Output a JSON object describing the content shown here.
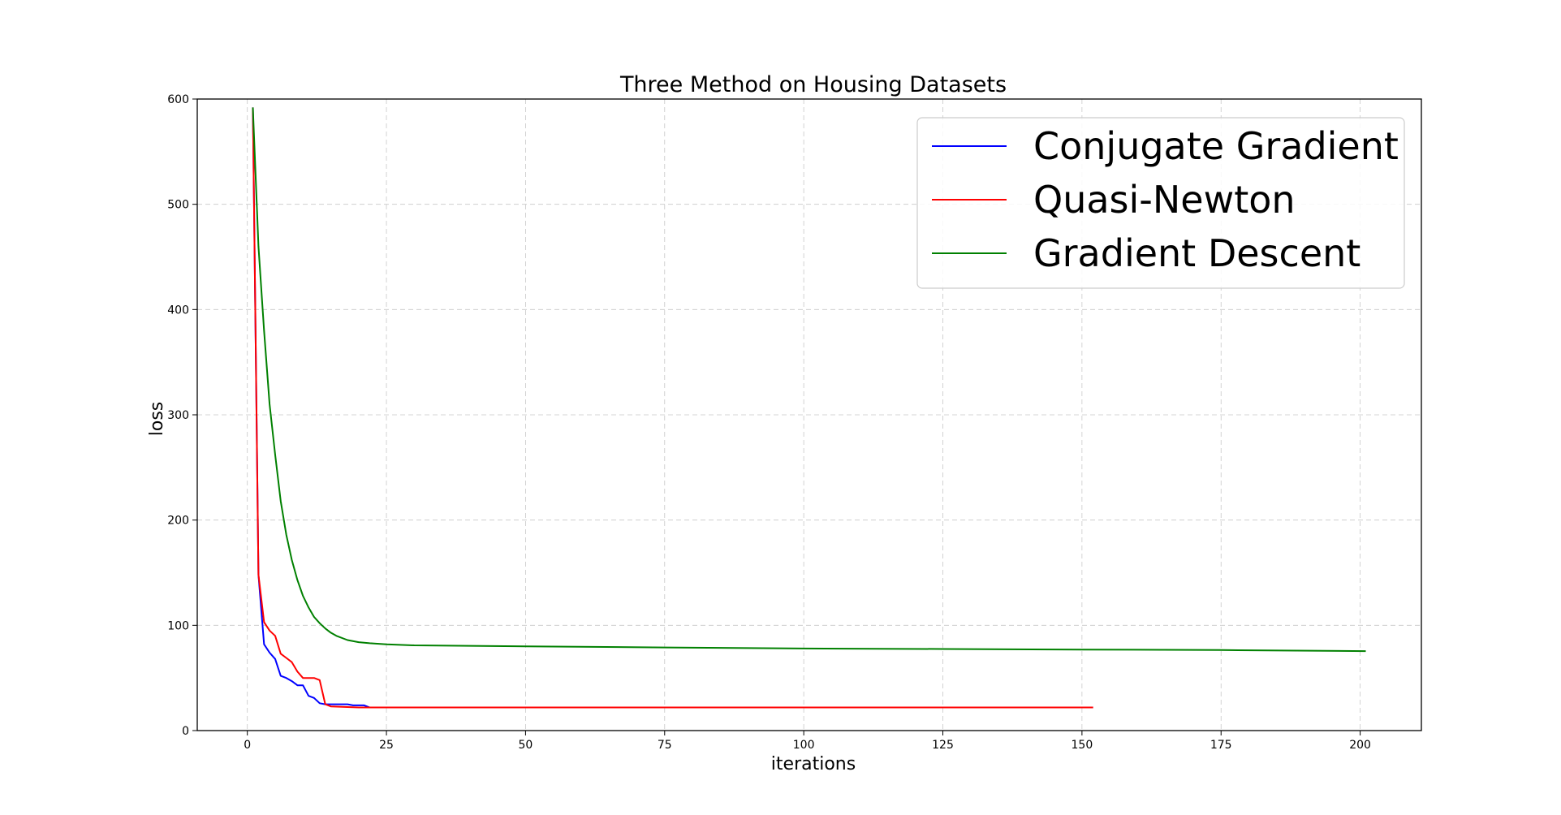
{
  "chart_data": {
    "type": "line",
    "title": "Three Method on Housing Datasets",
    "xlabel": "iterations",
    "ylabel": "loss",
    "xlim": [
      -9,
      211
    ],
    "ylim": [
      0,
      600
    ],
    "xticks": [
      0,
      25,
      50,
      75,
      100,
      125,
      150,
      175,
      200
    ],
    "yticks": [
      0,
      100,
      200,
      300,
      400,
      500,
      600
    ],
    "grid": true,
    "legend_position": "top-right",
    "series": [
      {
        "name": "Conjugate Gradient",
        "color": "#0000ff",
        "x": [
          1,
          2,
          3,
          4,
          5,
          6,
          7,
          8,
          9,
          10,
          11,
          12,
          13,
          14,
          15,
          16,
          17,
          18,
          19,
          20,
          21,
          22,
          152
        ],
        "y": [
          592,
          148,
          82,
          74,
          68,
          52,
          50,
          47,
          43,
          43,
          33,
          31,
          26,
          25,
          25,
          25,
          25,
          25,
          24,
          24,
          24,
          22,
          22
        ]
      },
      {
        "name": "Quasi-Newton",
        "color": "#ff0000",
        "x": [
          1,
          2,
          3,
          4,
          5,
          6,
          7,
          8,
          9,
          10,
          11,
          12,
          13,
          14,
          15,
          20,
          152
        ],
        "y": [
          592,
          148,
          103,
          95,
          90,
          73,
          69,
          65,
          56,
          50,
          50,
          50,
          48,
          25,
          23,
          22,
          22
        ]
      },
      {
        "name": "Gradient Descent",
        "color": "#008000",
        "x": [
          1,
          2,
          3,
          4,
          5,
          6,
          7,
          8,
          9,
          10,
          11,
          12,
          13,
          14,
          15,
          16,
          18,
          20,
          22,
          25,
          30,
          40,
          50,
          75,
          100,
          125,
          150,
          175,
          201
        ],
        "y": [
          592,
          460,
          380,
          310,
          262,
          218,
          186,
          162,
          143,
          128,
          117,
          108,
          102,
          97,
          93,
          90,
          86,
          84,
          83,
          82,
          81,
          80.5,
          80,
          79,
          78,
          77.5,
          77,
          76.5,
          75.5
        ]
      }
    ]
  }
}
